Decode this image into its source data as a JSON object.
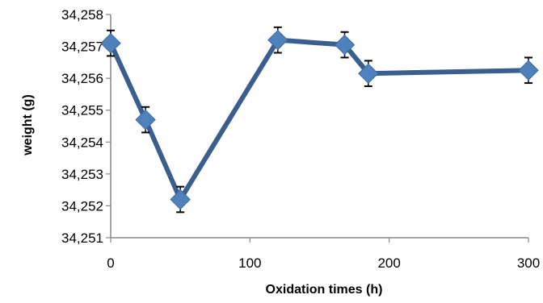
{
  "chart_data": {
    "type": "line",
    "title": "",
    "xlabel": "Oxidation times (h)",
    "ylabel": "weight (g)",
    "xlim": [
      0,
      300
    ],
    "ylim": [
      34251,
      34258
    ],
    "x_ticks": [
      0,
      100,
      200,
      300
    ],
    "x_tick_labels": [
      "0",
      "100",
      "200",
      "300"
    ],
    "y_ticks": [
      34251,
      34252,
      34253,
      34254,
      34255,
      34256,
      34257,
      34258
    ],
    "y_tick_labels": [
      "34,251",
      "34,252",
      "34,253",
      "34,254",
      "34,255",
      "34,256",
      "34,257",
      "34,258"
    ],
    "grid": false,
    "legend": "none",
    "series": [
      {
        "x": [
          0,
          25,
          50,
          120,
          168,
          185,
          300
        ],
        "y": [
          34257.1,
          34254.7,
          34252.2,
          34257.2,
          34257.05,
          34256.15,
          34256.25
        ],
        "error": [
          0.4,
          0.4,
          0.4,
          0.4,
          0.4,
          0.4,
          0.4
        ]
      }
    ],
    "line_color": "#3a5f8f",
    "marker_color": "#4f81bd",
    "marker": "diamond",
    "error_bar_color": "#000000"
  }
}
